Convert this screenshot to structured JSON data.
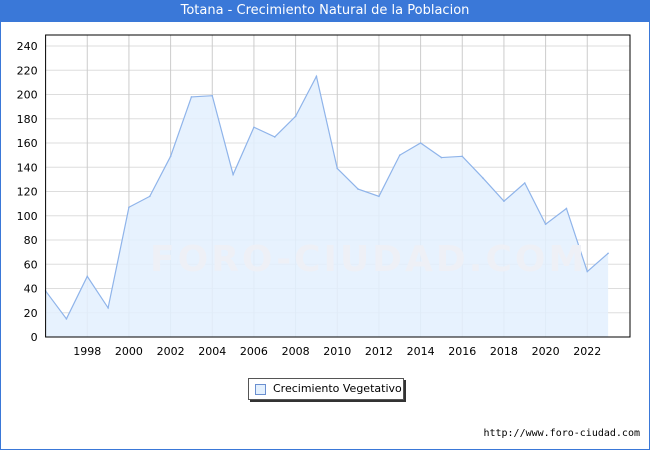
{
  "chart_data": {
    "type": "area",
    "title": "Totana - Crecimiento Natural de la Poblacion",
    "x": [
      1996,
      1997,
      1998,
      1999,
      2000,
      2001,
      2002,
      2003,
      2004,
      2005,
      2006,
      2007,
      2008,
      2009,
      2010,
      2011,
      2012,
      2013,
      2014,
      2015,
      2016,
      2017,
      2018,
      2019,
      2020,
      2021,
      2022,
      2023
    ],
    "series": [
      {
        "name": "Crecimiento Vegetativo",
        "values": [
          38,
          15,
          50,
          24,
          107,
          116,
          149,
          198,
          199,
          134,
          173,
          165,
          182,
          215,
          139,
          122,
          116,
          150,
          160,
          148,
          149,
          131,
          112,
          127,
          93,
          106,
          54,
          69
        ]
      }
    ],
    "xticks": [
      "1998",
      "2000",
      "2002",
      "2004",
      "2006",
      "2008",
      "2010",
      "2012",
      "2014",
      "2016",
      "2018",
      "2020",
      "2022"
    ],
    "yticks": [
      "0",
      "20",
      "40",
      "60",
      "80",
      "100",
      "120",
      "140",
      "160",
      "180",
      "200",
      "220",
      "240"
    ],
    "ylim": [
      0,
      248
    ],
    "xlim": [
      1996,
      2024
    ],
    "grid": true,
    "legend_position": "bottom-center",
    "colors": {
      "line": "#8fb4ea",
      "fill": "#e3f0fe",
      "header": "#3a78d8"
    }
  },
  "watermark": "FORO-CIUDAD.COM",
  "url": "http://www.foro-ciudad.com"
}
